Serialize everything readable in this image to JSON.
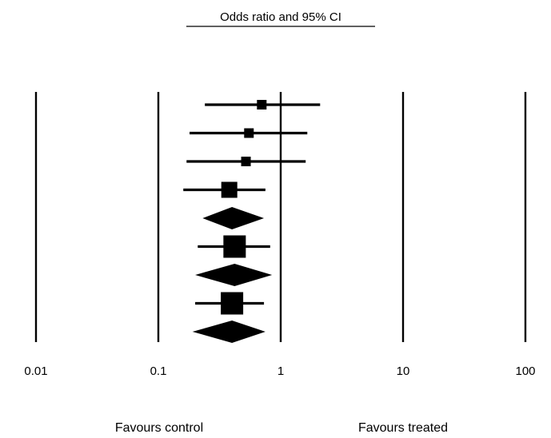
{
  "chart_data": {
    "type": "forest",
    "title": "Odds ratio and 95% CI",
    "x_scale": "log",
    "xlim": [
      0.01,
      100
    ],
    "x_ticks": [
      "0.01",
      "0.1",
      "1",
      "10",
      "100"
    ],
    "x_tick_values": [
      0.01,
      0.1,
      1,
      10,
      100
    ],
    "reference_line": 1,
    "grid": "vertical lines at each tick",
    "favours_left": "Favours control",
    "favours_right": "Favours treated",
    "rows": [
      {
        "kind": "study",
        "estimate": 0.7,
        "lower": 0.24,
        "upper": 2.1,
        "weight": "small"
      },
      {
        "kind": "study",
        "estimate": 0.55,
        "lower": 0.18,
        "upper": 1.65,
        "weight": "small"
      },
      {
        "kind": "study",
        "estimate": 0.52,
        "lower": 0.17,
        "upper": 1.6,
        "weight": "small"
      },
      {
        "kind": "study",
        "estimate": 0.38,
        "lower": 0.16,
        "upper": 0.75,
        "weight": "medium"
      },
      {
        "kind": "summary",
        "estimate": 0.4,
        "lower": 0.23,
        "upper": 0.73
      },
      {
        "kind": "study",
        "estimate": 0.42,
        "lower": 0.21,
        "upper": 0.82,
        "weight": "large"
      },
      {
        "kind": "summary",
        "estimate": 0.42,
        "lower": 0.2,
        "upper": 0.85
      },
      {
        "kind": "study",
        "estimate": 0.4,
        "lower": 0.2,
        "upper": 0.73,
        "weight": "large"
      },
      {
        "kind": "summary",
        "estimate": 0.4,
        "lower": 0.19,
        "upper": 0.75
      }
    ]
  }
}
